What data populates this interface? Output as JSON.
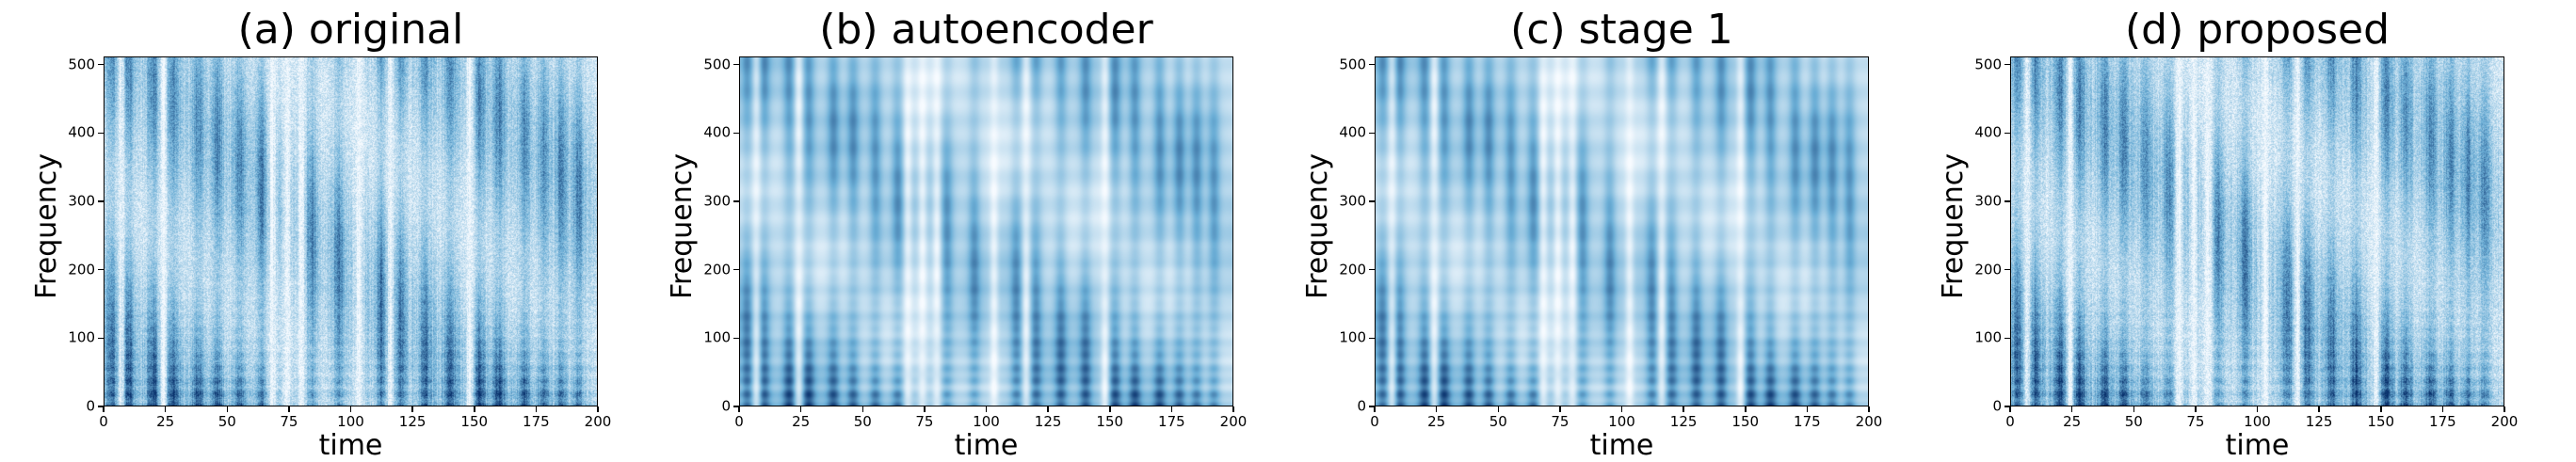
{
  "chart_data": [
    {
      "type": "heatmap",
      "title": "(a) original",
      "xlabel": "time",
      "ylabel": "Frequency",
      "xlim": [
        0,
        200
      ],
      "ylim": [
        0,
        512
      ],
      "xticks": [
        0,
        25,
        50,
        75,
        100,
        125,
        150,
        175,
        200
      ],
      "yticks": [
        0,
        100,
        200,
        300,
        400,
        500
      ],
      "colormap": "Blues",
      "smoothness": "fine",
      "grid": false
    },
    {
      "type": "heatmap",
      "title": "(b) autoencoder",
      "xlabel": "time",
      "ylabel": "Frequency",
      "xlim": [
        0,
        200
      ],
      "ylim": [
        0,
        512
      ],
      "xticks": [
        0,
        25,
        50,
        75,
        100,
        125,
        150,
        175,
        200
      ],
      "yticks": [
        0,
        100,
        200,
        300,
        400,
        500
      ],
      "colormap": "Blues",
      "smoothness": "blurred",
      "grid": false
    },
    {
      "type": "heatmap",
      "title": "(c) stage 1",
      "xlabel": "time",
      "ylabel": "Frequency",
      "xlim": [
        0,
        200
      ],
      "ylim": [
        0,
        512
      ],
      "xticks": [
        0,
        25,
        50,
        75,
        100,
        125,
        150,
        175,
        200
      ],
      "yticks": [
        0,
        100,
        200,
        300,
        400,
        500
      ],
      "colormap": "Blues",
      "smoothness": "blurred",
      "grid": false
    },
    {
      "type": "heatmap",
      "title": "(d) proposed",
      "xlabel": "time",
      "ylabel": "Frequency",
      "xlim": [
        0,
        200
      ],
      "ylim": [
        0,
        512
      ],
      "xticks": [
        0,
        25,
        50,
        75,
        100,
        125,
        150,
        175,
        200
      ],
      "yticks": [
        0,
        100,
        200,
        300,
        400,
        500
      ],
      "colormap": "Blues",
      "smoothness": "fine",
      "grid": false
    }
  ],
  "colors": {
    "low": "#f7fbff",
    "mid": "#6baed6",
    "high": "#08306b"
  }
}
